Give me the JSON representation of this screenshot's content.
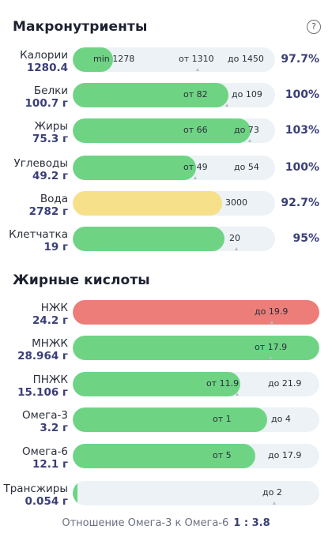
{
  "macros": {
    "title": "Макронутриенты",
    "help_icon": "?",
    "rows": [
      {
        "label": "Калории",
        "value": "1280.4",
        "percent": "97.7%",
        "fill_fraction": 0.2,
        "fill_color": "green",
        "markers": [
          {
            "text": "min 1278"
          },
          {
            "text": "от 1310"
          },
          {
            "text": "до 1450"
          }
        ]
      },
      {
        "label": "Белки",
        "value": "100.7 г",
        "percent": "100%",
        "fill_fraction": 0.77,
        "fill_color": "green",
        "markers": [
          {
            "text": "от 82"
          },
          {
            "text": "до 109"
          }
        ]
      },
      {
        "label": "Жиры",
        "value": "75.3 г",
        "percent": "103%",
        "fill_fraction": 0.88,
        "fill_color": "green",
        "markers": [
          {
            "text": "от 66"
          },
          {
            "text": "до 73"
          }
        ]
      },
      {
        "label": "Углеводы",
        "value": "49.2 г",
        "percent": "100%",
        "fill_fraction": 0.61,
        "fill_color": "green",
        "markers": [
          {
            "text": "от 49"
          },
          {
            "text": "до 54"
          }
        ]
      },
      {
        "label": "Вода",
        "value": "2782 г",
        "percent": "92.7%",
        "fill_fraction": 0.74,
        "fill_color": "yellow",
        "markers": [
          {
            "text": "3000"
          }
        ]
      },
      {
        "label": "Клетчатка",
        "value": "19 г",
        "percent": "95%",
        "fill_fraction": 0.75,
        "fill_color": "green",
        "markers": [
          {
            "text": "20"
          }
        ]
      }
    ]
  },
  "fatty_acids": {
    "title": "Жирные кислоты",
    "rows": [
      {
        "label": "НЖК",
        "value": "24.2 г",
        "fill_fraction": 1.0,
        "fill_color": "red",
        "markers": [
          {
            "text": "до 19.9"
          }
        ]
      },
      {
        "label": "МНЖК",
        "value": "28.964 г",
        "fill_fraction": 1.0,
        "fill_color": "green",
        "markers": [
          {
            "text": "от 17.9"
          }
        ]
      },
      {
        "label": "ПНЖК",
        "value": "15.106 г",
        "fill_fraction": 0.68,
        "fill_color": "green",
        "markers": [
          {
            "text": "от 11.9"
          },
          {
            "text": "до 21.9"
          }
        ]
      },
      {
        "label": "Омега-3",
        "value": "3.2 г",
        "fill_fraction": 0.79,
        "fill_color": "green",
        "markers": [
          {
            "text": "от 1"
          },
          {
            "text": "до 4"
          }
        ]
      },
      {
        "label": "Омега-6",
        "value": "12.1 г",
        "fill_fraction": 0.74,
        "fill_color": "green",
        "markers": [
          {
            "text": "от 5"
          },
          {
            "text": "до 17.9"
          }
        ]
      },
      {
        "label": "Трансжиры",
        "value": "0.054 г",
        "fill_fraction": 0.02,
        "fill_color": "green",
        "markers": [
          {
            "text": "до 2"
          }
        ]
      }
    ]
  },
  "omega_ratio": {
    "label": "Отношение Омега-3 к Омега-6",
    "value": "1 : 3.8"
  }
}
